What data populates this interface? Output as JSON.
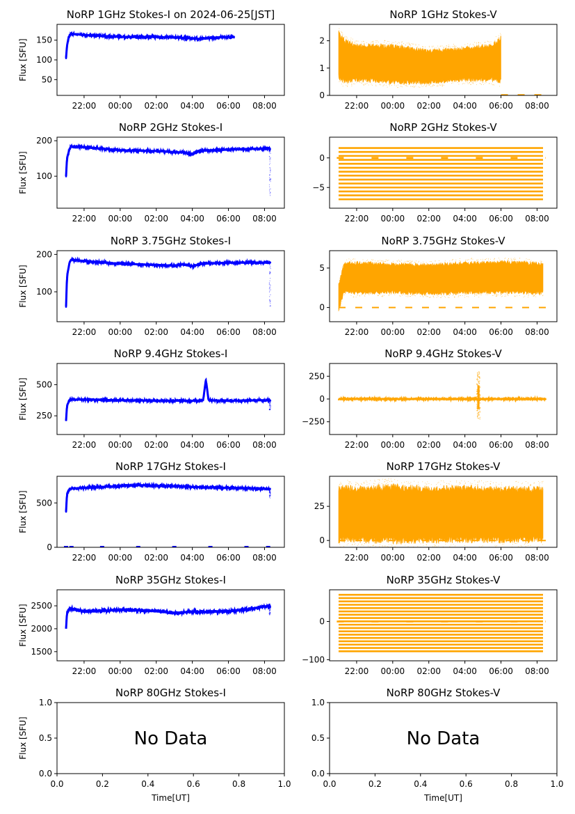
{
  "figure": {
    "date": "2024-06-25",
    "colors": {
      "stokes_i": "#0000ff",
      "stokes_v": "#ffa500",
      "axes": "#000000"
    }
  },
  "chart_data": [
    {
      "type": "scatter",
      "panel": "1GHz-I",
      "title": "NoRP 1GHz Stokes-I on 2024-06-25[JST]",
      "ylabel": "Flux [SFU]",
      "xlabel": "",
      "ylim": [
        10,
        190
      ],
      "yticks": [
        50,
        100,
        150
      ],
      "xticks": [
        "22:00",
        "00:00",
        "02:00",
        "04:00",
        "06:00",
        "08:00"
      ],
      "series": [
        {
          "name": "Stokes-I",
          "color": "#0000ff",
          "style": "trace",
          "x": [
            21.0,
            21.05,
            21.15,
            21.3,
            22.0,
            24.0,
            26.0,
            27.5,
            28.5,
            29.0,
            30.0,
            30.33
          ],
          "y": [
            105,
            135,
            158,
            166,
            163,
            158,
            158,
            156,
            153,
            156,
            158,
            158
          ],
          "noise": 3
        }
      ]
    },
    {
      "type": "scatter",
      "panel": "1GHz-V",
      "title": "NoRP 1GHz Stokes-V",
      "ylabel": "",
      "xlabel": "",
      "ylim": [
        0,
        2.6
      ],
      "yticks": [
        0,
        1,
        2
      ],
      "xticks": [
        "22:00",
        "00:00",
        "02:00",
        "04:00",
        "06:00",
        "08:00"
      ],
      "series": [
        {
          "name": "Stokes-V",
          "color": "#ffa500",
          "style": "band",
          "x": [
            21.0,
            21.3,
            22.0,
            24.0,
            26.0,
            28.0,
            29.5,
            30.0
          ],
          "upper": [
            2.4,
            2.1,
            1.9,
            1.9,
            1.7,
            1.8,
            1.9,
            2.2
          ],
          "lower": [
            0.6,
            0.4,
            0.5,
            0.4,
            0.4,
            0.5,
            0.5,
            0.4
          ],
          "baseline": {
            "x0": 30.0,
            "x1": 32.5,
            "y": 0.02
          }
        }
      ]
    },
    {
      "type": "scatter",
      "panel": "2GHz-I",
      "title": "NoRP 2GHz Stokes-I",
      "ylabel": "Flux [SFU]",
      "xlabel": "",
      "ylim": [
        10,
        210
      ],
      "yticks": [
        100,
        200
      ],
      "xticks": [
        "22:00",
        "00:00",
        "02:00",
        "04:00",
        "06:00",
        "08:00"
      ],
      "series": [
        {
          "name": "Stokes-I",
          "color": "#0000ff",
          "style": "trace",
          "x": [
            21.0,
            21.05,
            21.2,
            21.3,
            22.0,
            24.0,
            26.0,
            27.0,
            27.5,
            28.0,
            28.5,
            30.0,
            32.0,
            32.33
          ],
          "y": [
            100,
            150,
            178,
            184,
            182,
            173,
            171,
            168,
            167,
            163,
            172,
            175,
            178,
            178
          ],
          "noise": 3,
          "tail": {
            "x": 32.3,
            "ymin": 40,
            "ymax": 178
          }
        }
      ]
    },
    {
      "type": "scatter",
      "panel": "2GHz-V",
      "title": "NoRP 2GHz Stokes-V",
      "ylabel": "",
      "xlabel": "",
      "ylim": [
        -8.5,
        3.5
      ],
      "yticks": [
        -5,
        0
      ],
      "xticks": [
        "22:00",
        "00:00",
        "02:00",
        "04:00",
        "06:00",
        "08:00"
      ],
      "series": [
        {
          "name": "Stokes-V",
          "color": "#ffa500",
          "style": "stripes",
          "x0": 21.0,
          "x1": 32.33,
          "ymin": -7,
          "ymax": 2,
          "step": 0.667
        }
      ]
    },
    {
      "type": "scatter",
      "panel": "3.75GHz-I",
      "title": "NoRP 3.75GHz Stokes-I",
      "ylabel": "Flux [SFU]",
      "xlabel": "",
      "ylim": [
        20,
        210
      ],
      "yticks": [
        100,
        200
      ],
      "xticks": [
        "22:00",
        "00:00",
        "02:00",
        "04:00",
        "06:00",
        "08:00"
      ],
      "series": [
        {
          "name": "Stokes-I",
          "color": "#0000ff",
          "style": "trace",
          "x": [
            21.0,
            21.05,
            21.2,
            21.3,
            22.0,
            24.0,
            26.0,
            27.0,
            27.5,
            28.0,
            28.5,
            30.0,
            32.0,
            32.33
          ],
          "y": [
            60,
            140,
            180,
            186,
            182,
            175,
            172,
            170,
            173,
            168,
            175,
            178,
            178,
            178
          ],
          "noise": 3,
          "tail": {
            "x": 32.3,
            "ymin": 60,
            "ymax": 178
          }
        }
      ]
    },
    {
      "type": "scatter",
      "panel": "3.75GHz-V",
      "title": "NoRP 3.75GHz Stokes-V",
      "ylabel": "",
      "xlabel": "",
      "ylim": [
        -1.8,
        7.2
      ],
      "yticks": [
        0,
        5
      ],
      "xticks": [
        "22:00",
        "00:00",
        "02:00",
        "04:00",
        "06:00",
        "08:00"
      ],
      "series": [
        {
          "name": "Stokes-V",
          "color": "#ffa500",
          "style": "band",
          "x": [
            21.0,
            21.3,
            22.0,
            24.0,
            26.0,
            28.0,
            30.0,
            32.33
          ],
          "upper": [
            3.0,
            5.8,
            5.9,
            5.7,
            5.6,
            5.9,
            6.0,
            5.8
          ],
          "lower": [
            -0.6,
            1.8,
            1.6,
            1.7,
            1.5,
            1.6,
            1.7,
            1.6
          ],
          "baseline": {
            "x0": 21.0,
            "x1": 32.5,
            "y": 0.0
          }
        }
      ]
    },
    {
      "type": "scatter",
      "panel": "9.4GHz-I",
      "title": "NoRP 9.4GHz Stokes-I",
      "ylabel": "Flux [SFU]",
      "xlabel": "",
      "ylim": [
        100,
        670
      ],
      "yticks": [
        250,
        500
      ],
      "xticks": [
        "22:00",
        "00:00",
        "02:00",
        "04:00",
        "06:00",
        "08:00"
      ],
      "series": [
        {
          "name": "Stokes-I",
          "color": "#0000ff",
          "style": "trace",
          "x": [
            21.0,
            21.05,
            21.2,
            22.0,
            24.0,
            26.0,
            28.0,
            28.6,
            28.75,
            28.9,
            30.0,
            32.0,
            32.33
          ],
          "y": [
            210,
            330,
            380,
            380,
            375,
            372,
            370,
            375,
            540,
            375,
            370,
            375,
            372
          ],
          "noise": 8,
          "tail": {
            "x": 32.3,
            "ymin": 290,
            "ymax": 380
          }
        }
      ]
    },
    {
      "type": "scatter",
      "panel": "9.4GHz-V",
      "title": "NoRP 9.4GHz Stokes-V",
      "ylabel": "",
      "xlabel": "",
      "ylim": [
        -390,
        390
      ],
      "yticks": [
        -250,
        0,
        250
      ],
      "xticks": [
        "22:00",
        "00:00",
        "02:00",
        "04:00",
        "06:00",
        "08:00"
      ],
      "series": [
        {
          "name": "Stokes-V",
          "color": "#ffa500",
          "style": "trace",
          "x": [
            21.0,
            22.0,
            24.0,
            26.0,
            28.0,
            28.6,
            28.75,
            28.9,
            30.0,
            32.0,
            32.5
          ],
          "y": [
            0,
            0,
            0,
            0,
            0,
            0,
            0,
            0,
            0,
            0,
            0
          ],
          "noise": 6,
          "spike": {
            "x": 28.75,
            "ymin": -220,
            "ymax": 300
          }
        }
      ]
    },
    {
      "type": "scatter",
      "panel": "17GHz-I",
      "title": "NoRP 17GHz Stokes-I",
      "ylabel": "Flux [SFU]",
      "xlabel": "",
      "ylim": [
        0,
        800
      ],
      "yticks": [
        0,
        500
      ],
      "xticks": [
        "22:00",
        "00:00",
        "02:00",
        "04:00",
        "06:00",
        "08:00"
      ],
      "series": [
        {
          "name": "Stokes-I",
          "color": "#0000ff",
          "style": "trace",
          "x": [
            21.0,
            21.05,
            21.2,
            22.0,
            24.0,
            25.0,
            26.0,
            28.0,
            30.0,
            32.0,
            32.33
          ],
          "y": [
            400,
            600,
            660,
            670,
            690,
            700,
            695,
            680,
            670,
            660,
            655
          ],
          "noise": 12,
          "tail": {
            "x": 32.3,
            "ymin": 550,
            "ymax": 660
          },
          "zeros": [
            21.0,
            21.3,
            23.0,
            25.0,
            27.0,
            29.0,
            31.0,
            32.2
          ]
        }
      ]
    },
    {
      "type": "scatter",
      "panel": "17GHz-V",
      "title": "NoRP 17GHz Stokes-V",
      "ylabel": "",
      "xlabel": "",
      "ylim": [
        -5,
        47
      ],
      "yticks": [
        0,
        25
      ],
      "xticks": [
        "22:00",
        "00:00",
        "02:00",
        "04:00",
        "06:00",
        "08:00"
      ],
      "series": [
        {
          "name": "Stokes-V",
          "color": "#ffa500",
          "style": "band",
          "x": [
            21.0,
            21.3,
            22.0,
            24.0,
            26.0,
            28.0,
            30.0,
            32.33
          ],
          "upper": [
            40,
            41,
            40,
            42,
            40,
            41,
            40,
            40
          ],
          "lower": [
            -2,
            -2,
            -2,
            -3,
            -2,
            -2,
            -2,
            -2
          ],
          "baseline": {
            "x0": 21.0,
            "x1": 32.5,
            "y": 0.0
          }
        }
      ]
    },
    {
      "type": "scatter",
      "panel": "35GHz-I",
      "title": "NoRP 35GHz Stokes-I",
      "ylabel": "Flux [SFU]",
      "xlabel": "",
      "ylim": [
        1300,
        2850
      ],
      "yticks": [
        1500,
        2000,
        2500
      ],
      "xticks": [
        "22:00",
        "00:00",
        "02:00",
        "04:00",
        "06:00",
        "08:00"
      ],
      "series": [
        {
          "name": "Stokes-I",
          "color": "#0000ff",
          "style": "trace",
          "x": [
            21.0,
            21.05,
            21.2,
            22.0,
            24.0,
            26.0,
            27.0,
            28.0,
            29.0,
            30.0,
            31.0,
            32.0,
            32.33
          ],
          "y": [
            2000,
            2350,
            2450,
            2380,
            2410,
            2390,
            2340,
            2370,
            2370,
            2380,
            2420,
            2490,
            2480
          ],
          "noise": 35,
          "tail": {
            "x": 32.3,
            "ymin": 2300,
            "ymax": 2520
          }
        }
      ]
    },
    {
      "type": "scatter",
      "panel": "35GHz-V",
      "title": "NoRP 35GHz Stokes-V",
      "ylabel": "",
      "xlabel": "",
      "ylim": [
        -103,
        83
      ],
      "yticks": [
        -100,
        0
      ],
      "xticks": [
        "22:00",
        "00:00",
        "02:00",
        "04:00",
        "06:00",
        "08:00"
      ],
      "series": [
        {
          "name": "Stokes-V",
          "color": "#ffa500",
          "style": "stripes",
          "x0": 21.0,
          "x1": 32.33,
          "ymin": -78,
          "ymax": 70,
          "step": 8.7
        }
      ]
    },
    {
      "type": "scatter",
      "panel": "80GHz-I",
      "title": "NoRP 80GHz Stokes-I",
      "ylabel": "Flux [SFU]",
      "xlabel": "Time[UT]",
      "xlim": [
        0,
        1
      ],
      "ylim": [
        0,
        1
      ],
      "yticks": [
        "0.0",
        "0.5",
        "1.0"
      ],
      "xticks": [
        "0.0",
        "0.2",
        "0.4",
        "0.6",
        "0.8",
        "1.0"
      ],
      "annotation": "No Data",
      "series": []
    },
    {
      "type": "scatter",
      "panel": "80GHz-V",
      "title": "NoRP 80GHz Stokes-V",
      "ylabel": "",
      "xlabel": "Time[UT]",
      "xlim": [
        0,
        1
      ],
      "ylim": [
        0,
        1
      ],
      "yticks": [
        "0.0",
        "0.5",
        "1.0"
      ],
      "xticks": [
        "0.0",
        "0.2",
        "0.4",
        "0.6",
        "0.8",
        "1.0"
      ],
      "annotation": "No Data",
      "series": []
    }
  ]
}
